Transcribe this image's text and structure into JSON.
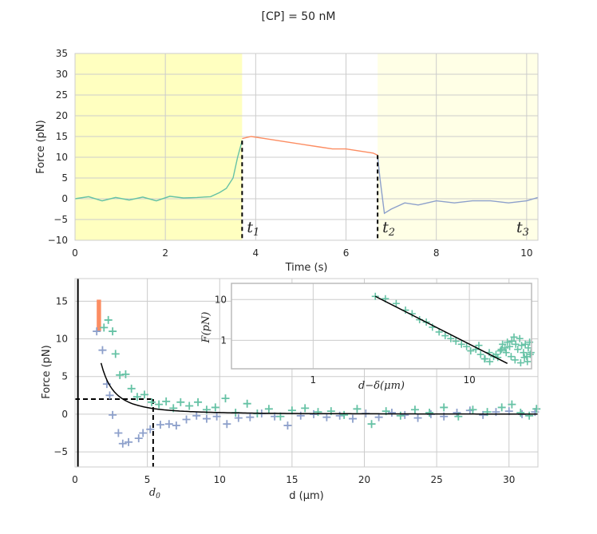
{
  "figure": {
    "title": "[CP] = 50 nM"
  },
  "colors": {
    "green": "#66c2a5",
    "orange": "#fc8d62",
    "blue": "#8da0cb",
    "yellow": "#ffffc0",
    "lightyellow": "#ffffe6",
    "grid": "#cccccc",
    "frame": "#cccccc"
  },
  "chart_data": [
    {
      "type": "line",
      "xlabel": "Time (s)",
      "ylabel": "Force (pN)",
      "xlim": [
        0,
        10.25
      ],
      "ylim": [
        -10,
        35
      ],
      "xticks": [
        "0",
        "2",
        "4",
        "6",
        "8",
        "10"
      ],
      "yticks": [
        "35",
        "30",
        "25",
        "20",
        "15",
        "10",
        "5",
        "0",
        "−5",
        "−10"
      ],
      "grid": true,
      "shaded_regions": [
        {
          "from": 0,
          "to": 3.7,
          "color": "yellow"
        },
        {
          "from": 6.7,
          "to": 10.25,
          "color": "lightyellow"
        }
      ],
      "markers": [
        {
          "x": 3.7,
          "label": "t",
          "sub": "1"
        },
        {
          "x": 6.7,
          "label": "t",
          "sub": "2"
        },
        {
          "x": 10.25,
          "label": "t",
          "sub": "3"
        }
      ],
      "series": [
        {
          "color": "green",
          "x": [
            0,
            0.3,
            0.6,
            0.9,
            1.2,
            1.5,
            1.8,
            2.1,
            2.4,
            2.7,
            3.0,
            3.2,
            3.35,
            3.5,
            3.6,
            3.7
          ],
          "y": [
            0,
            0.5,
            -0.5,
            0.3,
            -0.3,
            0.4,
            -0.5,
            0.6,
            0.2,
            0.3,
            0.5,
            1.5,
            2.5,
            5,
            10,
            14
          ]
        },
        {
          "color": "orange",
          "x": [
            3.7,
            3.9,
            4.2,
            4.5,
            4.8,
            5.1,
            5.4,
            5.7,
            6.0,
            6.3,
            6.6,
            6.7
          ],
          "y": [
            14.5,
            15,
            14.5,
            14,
            13.5,
            13,
            12.5,
            12,
            12,
            11.5,
            11,
            10.5
          ]
        },
        {
          "color": "blue",
          "x": [
            6.7,
            6.75,
            6.85,
            7.0,
            7.3,
            7.6,
            8.0,
            8.4,
            8.8,
            9.2,
            9.6,
            10.0,
            10.25
          ],
          "y": [
            10.5,
            5,
            -3.5,
            -2.5,
            -1,
            -1.5,
            -0.5,
            -1,
            -0.5,
            -0.5,
            -1,
            -0.5,
            0.3
          ]
        }
      ]
    },
    {
      "type": "scatter",
      "xlabel": "d (μm)",
      "ylabel": "Force (pN)",
      "xlim": [
        0,
        32
      ],
      "ylim": [
        -7,
        18
      ],
      "xticks": [
        "0",
        "5",
        "10",
        "15",
        "20",
        "25",
        "30"
      ],
      "yticks": [
        "15",
        "10",
        "5",
        "0",
        "−5"
      ],
      "grid": true,
      "d0": {
        "x": 5.4,
        "y": 2.0,
        "label": "d",
        "sub": "0"
      },
      "wall_x": 0.2,
      "orange_cluster": {
        "x": [
          1.5,
          1.8
        ],
        "y": [
          11,
          15.2
        ]
      },
      "green_points": {
        "x": [
          2.0,
          2.3,
          2.6,
          2.8,
          3.1,
          3.5,
          3.9,
          4.3,
          4.8,
          5.3,
          5.8,
          6.3,
          6.8,
          7.3,
          7.9,
          8.5,
          9.1,
          9.7,
          10.4,
          11.1,
          11.9,
          12.6,
          13.4,
          14.2,
          15.0,
          15.9,
          16.8,
          17.7,
          18.6,
          19.5,
          20.5,
          21.5,
          22.5,
          23.5,
          24.5,
          25.5,
          26.5,
          27.5,
          28.5,
          29.5,
          30.2,
          30.8,
          31.4,
          31.9
        ],
        "y": [
          11.5,
          12.5,
          11.0,
          8.0,
          5.2,
          5.3,
          3.4,
          2.3,
          2.6,
          1.6,
          1.3,
          1.7,
          0.8,
          1.6,
          1.1,
          1.6,
          0.6,
          0.9,
          2.1,
          0.2,
          1.4,
          0.1,
          0.7,
          -0.3,
          0.5,
          0.8,
          0.3,
          0.4,
          -0.1,
          0.7,
          -1.3,
          0.4,
          -0.2,
          0.6,
          0.2,
          0.9,
          -0.3,
          0.6,
          0.3,
          0.9,
          1.3,
          0.2,
          -0.2,
          0.7
        ]
      },
      "blue_points": {
        "x": [
          1.5,
          1.9,
          2.2,
          2.4,
          2.6,
          3.0,
          3.3,
          3.7,
          4.4,
          4.7,
          5.2,
          5.9,
          6.5,
          7.0,
          7.7,
          8.4,
          9.1,
          9.8,
          10.5,
          11.3,
          12.1,
          12.9,
          13.8,
          14.7,
          15.6,
          16.5,
          17.4,
          18.3,
          19.2,
          20.1,
          21.0,
          21.9,
          22.8,
          23.7,
          24.6,
          25.5,
          26.4,
          27.3,
          28.2,
          29.1,
          30.0,
          30.9,
          31.8
        ],
        "y": [
          11.0,
          8.5,
          4.0,
          2.5,
          -0.1,
          -2.5,
          -3.9,
          -3.7,
          -3.2,
          -2.5,
          -2.0,
          -1.4,
          -1.3,
          -1.5,
          -0.7,
          -0.2,
          -0.6,
          -0.3,
          -1.3,
          -0.5,
          -0.4,
          0.1,
          -0.3,
          -1.5,
          -0.2,
          0.0,
          -0.4,
          -0.2,
          -0.6,
          0.1,
          -0.4,
          0.2,
          -0.1,
          -0.5,
          0.0,
          -0.3,
          0.2,
          0.5,
          -0.1,
          0.3,
          0.4,
          0.0,
          0.3
        ]
      },
      "fit_curve": {
        "x0": 0,
        "c": 22,
        "x_from": 1.8,
        "x_to": 32
      }
    },
    {
      "type": "scatter",
      "inset": true,
      "scale": "log",
      "xlabel": "d−δ(μm)",
      "ylabel": "F(pN)",
      "xlim": [
        0.3,
        25
      ],
      "ylim": [
        0.2,
        25
      ],
      "xticks": [
        "1",
        "10"
      ],
      "xtick_values": [
        1,
        10
      ],
      "yticks": [
        "10",
        "1"
      ],
      "ytick_values": [
        10,
        1
      ],
      "grid": true,
      "points": {
        "x": [
          2.5,
          2.9,
          3.4,
          3.9,
          4.3,
          4.8,
          5.3,
          5.8,
          6.4,
          7.0,
          7.6,
          8.2,
          8.9,
          9.6,
          10.2,
          11.0,
          11.8,
          12.6,
          13.4,
          14.3,
          15.2,
          15.8,
          16.3,
          16.9,
          17.5,
          18.1,
          18.7,
          19.3,
          19.8,
          20.4,
          21.0,
          21.6,
          22.2,
          22.8,
          23.3,
          23.8,
          24.3,
          24.8,
          11.5,
          12.5,
          13.5,
          14.8,
          16.0,
          17.2,
          18.5,
          19.6,
          21.3,
          22.5,
          23.5,
          24.5
        ],
        "y": [
          12,
          10.5,
          8.0,
          5.5,
          4.5,
          3.2,
          2.8,
          2.1,
          1.6,
          1.3,
          1.1,
          0.95,
          0.8,
          0.7,
          0.55,
          0.6,
          0.45,
          0.35,
          0.5,
          0.4,
          0.38,
          0.55,
          0.8,
          0.65,
          0.9,
          0.7,
          0.95,
          1.2,
          0.8,
          0.6,
          1.1,
          0.75,
          0.5,
          0.8,
          0.4,
          0.65,
          0.9,
          0.5,
          0.75,
          0.35,
          0.3,
          0.45,
          0.6,
          0.5,
          0.4,
          0.33,
          0.28,
          0.38,
          0.3,
          0.45
        ]
      },
      "fit_line": {
        "x": [
          2.5,
          17.5
        ],
        "y": [
          12,
          0.27
        ]
      }
    }
  ]
}
